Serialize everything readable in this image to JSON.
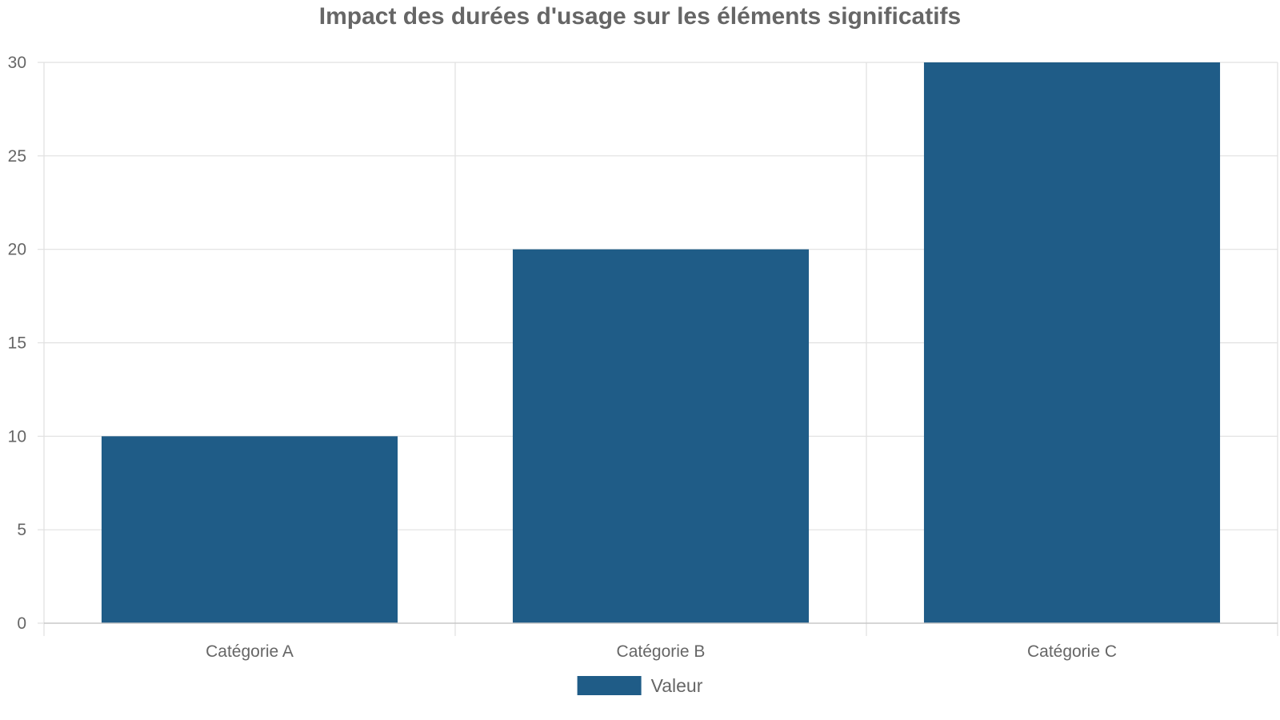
{
  "chart_data": {
    "type": "bar",
    "title": "Impact des durées d'usage sur les éléments significatifs",
    "xlabel": "",
    "ylabel": "",
    "categories": [
      "Catégorie A",
      "Catégorie B",
      "Catégorie C"
    ],
    "series": [
      {
        "name": "Valeur",
        "values": [
          10,
          20,
          30
        ],
        "color": "#1f5c87"
      }
    ],
    "ylim": [
      0,
      30
    ],
    "yticks": [
      "0",
      "5",
      "10",
      "15",
      "20",
      "25",
      "30"
    ],
    "grid": true,
    "legend_position": "bottom"
  }
}
